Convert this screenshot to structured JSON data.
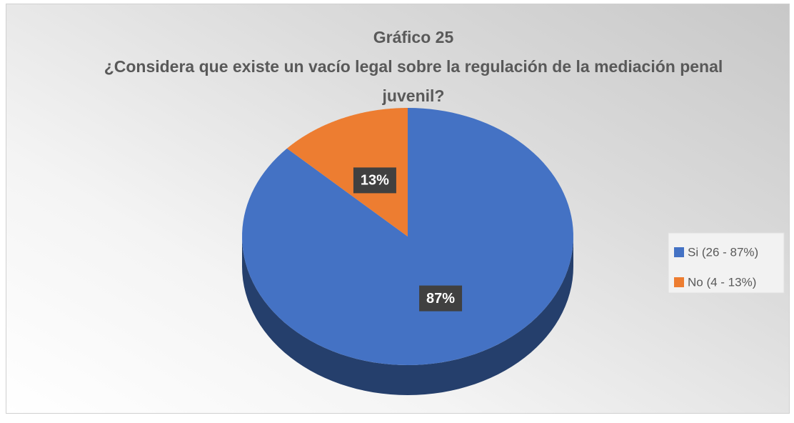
{
  "chart_data": {
    "type": "pie",
    "title": "Gráfico 25",
    "subtitle": "¿Considera que existe un vacío legal sobre la regulación de la mediación penal juvenil?",
    "categories": [
      "Si (26 - 87%)",
      "No (4 - 13%)"
    ],
    "values": [
      87,
      13
    ],
    "value_labels": [
      "87%",
      "13%"
    ],
    "colors": [
      "#4472c4",
      "#ed7d31"
    ],
    "legend": "right"
  }
}
